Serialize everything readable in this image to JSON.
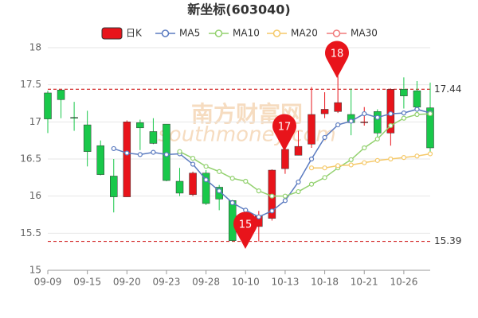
{
  "chart_data": {
    "type": "candlestick",
    "title": "新坐标(603040)",
    "watermark": [
      "南方财富网",
      "southmoney.com"
    ],
    "categories": [
      "09-09",
      null,
      null,
      "09-15",
      null,
      null,
      "09-20",
      null,
      null,
      "09-23",
      null,
      null,
      "09-28",
      null,
      null,
      "10-10",
      null,
      null,
      "10-13",
      null,
      null,
      "10-18",
      null,
      null,
      "10-21",
      null,
      null,
      "10-26",
      null,
      null
    ],
    "ohlc": {
      "name": "日K",
      "up_color": "#e8141b",
      "down_color": "#19c84a",
      "open": [
        17.39,
        17.43,
        17.06,
        16.96,
        16.68,
        16.27,
        15.99,
        16.99,
        16.87,
        16.97,
        16.2,
        16.02,
        16.31,
        16.12,
        15.94,
        15.55,
        15.59,
        15.7,
        16.37,
        16.55,
        16.7,
        17.11,
        17.14,
        17.1,
        16.99,
        17.14,
        16.85,
        17.44,
        17.42,
        17.19
      ],
      "close": [
        17.04,
        17.3,
        17.05,
        16.6,
        16.29,
        15.99,
        17.0,
        16.92,
        16.71,
        16.21,
        16.04,
        16.31,
        15.9,
        15.96,
        15.4,
        15.65,
        15.73,
        16.35,
        16.63,
        16.67,
        17.1,
        17.17,
        17.26,
        16.99,
        17.0,
        16.85,
        17.44,
        17.35,
        17.2,
        16.65
      ],
      "high": [
        17.42,
        17.43,
        17.27,
        17.15,
        16.75,
        16.5,
        17.02,
        17.03,
        17.05,
        16.97,
        16.38,
        16.33,
        16.35,
        16.15,
        15.95,
        15.75,
        15.8,
        16.36,
        16.75,
        16.88,
        17.47,
        17.4,
        17.62,
        17.45,
        17.2,
        17.17,
        17.45,
        17.6,
        17.55,
        17.53
      ],
      "low": [
        16.85,
        17.05,
        16.88,
        16.4,
        16.28,
        15.78,
        15.99,
        16.62,
        16.7,
        16.2,
        16.0,
        16.0,
        15.88,
        15.81,
        15.39,
        15.39,
        15.39,
        15.67,
        16.3,
        16.55,
        16.65,
        17.05,
        17.12,
        16.82,
        16.95,
        16.77,
        16.68,
        17.18,
        17.08,
        16.6
      ]
    },
    "series": [
      {
        "name": "MA5",
        "color": "#5b7bc0",
        "values": [
          null,
          null,
          null,
          null,
          null,
          16.64,
          16.58,
          16.56,
          16.59,
          16.56,
          16.57,
          16.43,
          16.22,
          16.07,
          15.91,
          15.81,
          15.72,
          15.8,
          15.94,
          16.19,
          16.5,
          16.79,
          16.96,
          17.01,
          17.11,
          17.06,
          17.11,
          17.12,
          17.17,
          17.12
        ]
      },
      {
        "name": "MA10",
        "color": "#93d16f",
        "values": [
          null,
          null,
          null,
          null,
          null,
          null,
          null,
          null,
          null,
          null,
          16.6,
          16.51,
          16.4,
          16.33,
          16.24,
          16.2,
          16.07,
          16.0,
          16.0,
          16.06,
          16.16,
          16.25,
          16.38,
          16.49,
          16.65,
          16.77,
          16.95,
          17.05,
          17.1,
          17.11
        ]
      },
      {
        "name": "MA20",
        "color": "#f5c96a",
        "values": [
          null,
          null,
          null,
          null,
          null,
          null,
          null,
          null,
          null,
          null,
          null,
          null,
          null,
          null,
          null,
          null,
          null,
          null,
          null,
          null,
          16.38,
          16.38,
          16.41,
          16.42,
          16.45,
          16.48,
          16.5,
          16.52,
          16.54,
          16.57
        ]
      },
      {
        "name": "MA30",
        "color": "#f07a7a",
        "values": [
          null,
          null,
          null,
          null,
          null,
          null,
          null,
          null,
          null,
          null,
          null,
          null,
          null,
          null,
          null,
          null,
          null,
          null,
          null,
          null,
          null,
          null,
          null,
          null,
          null,
          null,
          null,
          null,
          null,
          null
        ]
      }
    ],
    "ref_lines": [
      17.44,
      15.39
    ],
    "annotations": [
      "15",
      "17",
      "18"
    ],
    "ylim": [
      15,
      18
    ],
    "yticks": [
      15,
      15.5,
      16,
      16.5,
      17,
      17.5,
      18
    ],
    "grid": true
  }
}
